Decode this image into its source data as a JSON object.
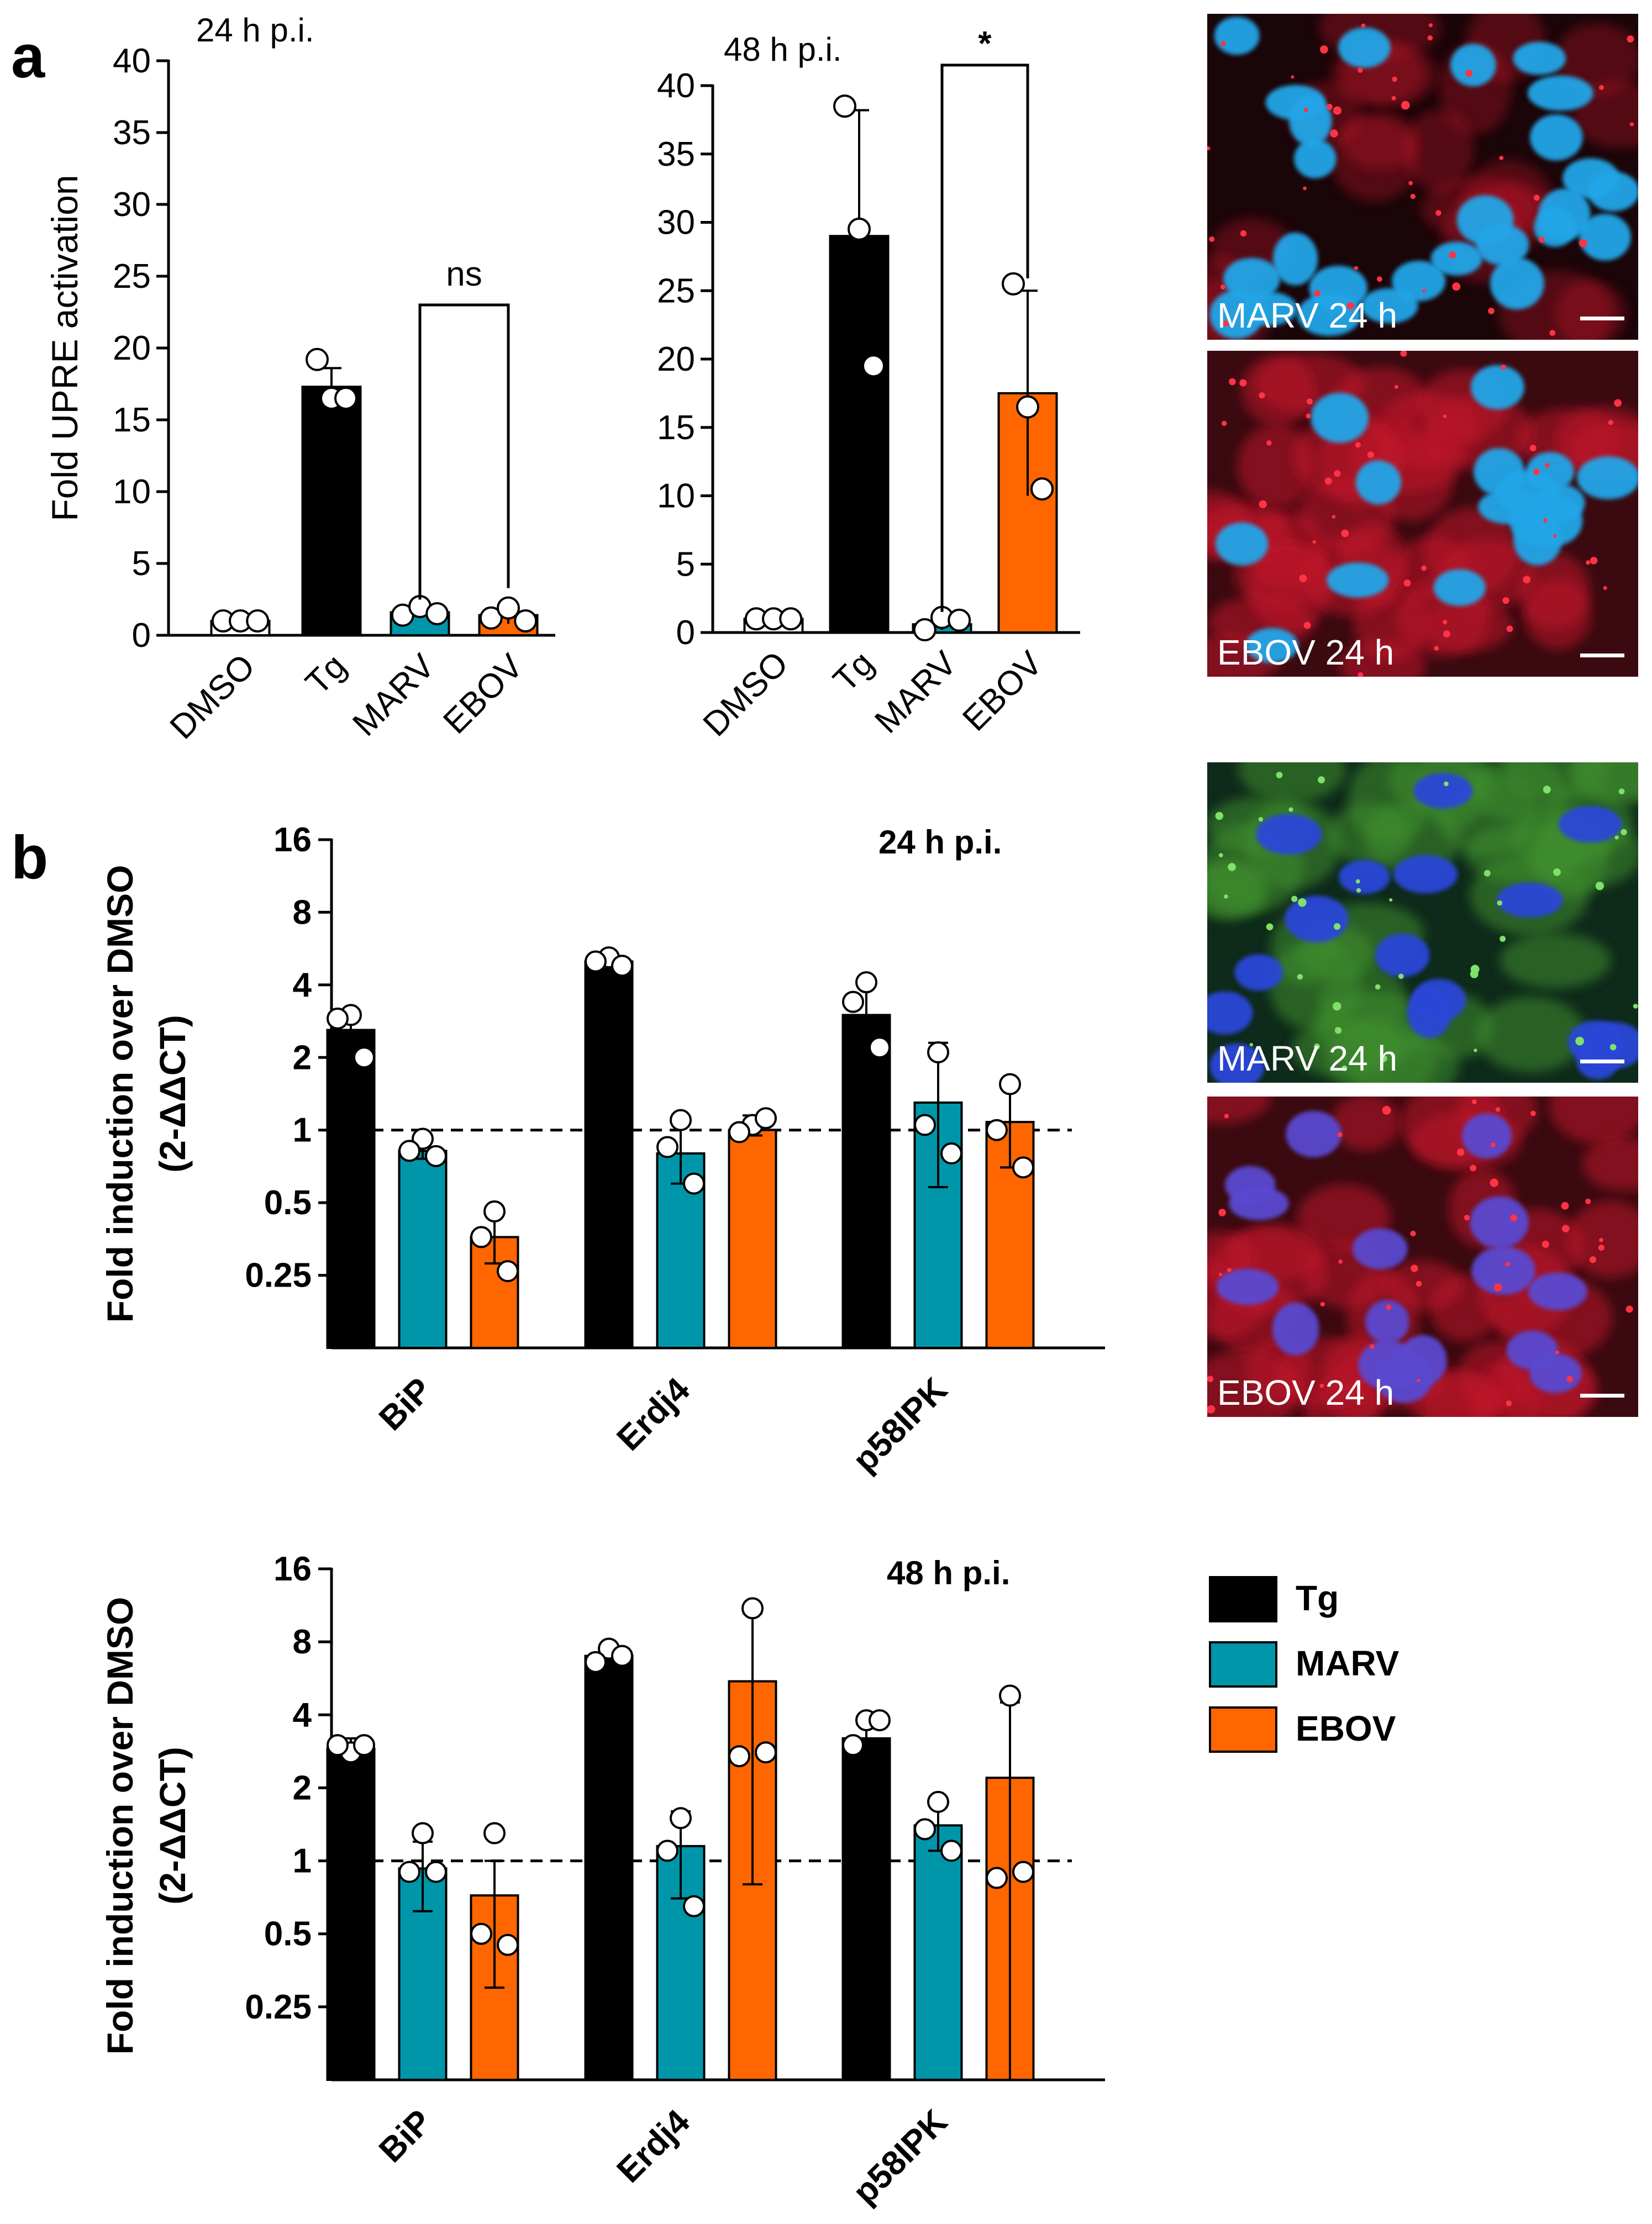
{
  "panel_letters": {
    "a": "a",
    "b": "b"
  },
  "colors": {
    "Tg": "#000000",
    "MARV": "#0096aa",
    "EBOV": "#ff6600"
  },
  "legend": [
    {
      "name": "Tg",
      "color": "#000000"
    },
    {
      "name": "MARV",
      "color": "#0096aa"
    },
    {
      "name": "EBOV",
      "color": "#ff6600"
    }
  ],
  "micrographs": [
    {
      "label": "MARV 24 h",
      "stain": "red-blue",
      "sparse": true
    },
    {
      "label": "EBOV 24 h",
      "stain": "red-blue",
      "sparse": false
    },
    {
      "label": "MARV 24 h",
      "stain": "green-blue",
      "sparse": false
    },
    {
      "label": "EBOV 24 h",
      "stain": "red-blue",
      "sparse": false
    }
  ],
  "chart_data": [
    {
      "id": "a1",
      "type": "bar",
      "title": "24 h p.i.",
      "ylabel": "Fold UPRE activation",
      "xlabel": "",
      "categories": [
        "DMSO",
        "Tg",
        "MARV",
        "EBOV"
      ],
      "ylim": [
        0,
        40
      ],
      "yticks": [
        0,
        5,
        10,
        15,
        20,
        25,
        30,
        35,
        40
      ],
      "bar_colors": [
        "#ffffff",
        "#000000",
        "#0096aa",
        "#ff6600"
      ],
      "values": [
        1.0,
        17.3,
        1.6,
        1.4
      ],
      "sd": [
        0,
        1.3,
        0.4,
        0.6
      ],
      "points": [
        [
          1,
          1,
          1
        ],
        [
          19.2,
          16.5,
          16.5
        ],
        [
          1.4,
          2.0,
          1.5
        ],
        [
          1.2,
          1.9,
          1.0
        ]
      ],
      "significance": [
        {
          "from": 2,
          "to": 3,
          "label": "ns",
          "y": 23
        }
      ]
    },
    {
      "id": "a2",
      "type": "bar",
      "title": "48 h p.i.",
      "ylabel": "",
      "xlabel": "",
      "categories": [
        "DMSO",
        "Tg",
        "MARV",
        "EBOV"
      ],
      "ylim": [
        0,
        40
      ],
      "yticks": [
        0,
        5,
        10,
        15,
        20,
        25,
        30,
        35,
        40
      ],
      "bar_colors": [
        "#ffffff",
        "#000000",
        "#0096aa",
        "#ff6600"
      ],
      "values": [
        1.0,
        29.0,
        0.6,
        17.5
      ],
      "sd": [
        0,
        9.2,
        0.4,
        7.5
      ],
      "points": [
        [
          1,
          1,
          1
        ],
        [
          38.5,
          29.5,
          19.5
        ],
        [
          0.2,
          1.1,
          0.9
        ],
        [
          25.5,
          16.5,
          10.5
        ]
      ],
      "significance": [
        {
          "from": 2,
          "to": 3,
          "label": "*",
          "y": 41.5
        }
      ]
    },
    {
      "id": "b1",
      "type": "bar",
      "title": "24 h p.i.",
      "ylabel": "Fold induction over DMSO",
      "ylabel_sub": "(2-ΔΔCT)",
      "xlabel": "",
      "scale": "log2",
      "categories": [
        "BiP",
        "Erdj4",
        "p58IPK"
      ],
      "ylim": [
        0.125,
        16
      ],
      "yticks": [
        0.25,
        0.5,
        1,
        2,
        4,
        8,
        16
      ],
      "yticklabels": [
        "0.25",
        "0.5",
        "1",
        "2",
        "4",
        "8",
        "16"
      ],
      "reference_line": 1,
      "series": [
        {
          "name": "Tg",
          "values": [
            2.6,
            5.0,
            3.0
          ],
          "sd_up": [
            3.1,
            5.3,
            4.0
          ],
          "sd_down": [
            2.2,
            4.7,
            2.3
          ],
          "points": [
            [
              3.0,
              2.9,
              2.0
            ],
            [
              5.2,
              5.0,
              4.8
            ],
            [
              4.1,
              3.4,
              2.2
            ]
          ]
        },
        {
          "name": "MARV",
          "values": [
            0.82,
            0.8,
            1.3
          ],
          "sd_up": [
            0.92,
            1.1,
            2.3
          ],
          "sd_down": [
            0.76,
            0.6,
            0.58
          ],
          "points": [
            [
              0.92,
              0.82,
              0.78
            ],
            [
              1.1,
              0.85,
              0.6
            ],
            [
              2.1,
              1.05,
              0.8
            ]
          ]
        },
        {
          "name": "EBOV",
          "values": [
            0.36,
            1.0,
            1.08
          ],
          "sd_up": [
            0.46,
            1.15,
            1.5
          ],
          "sd_down": [
            0.28,
            0.95,
            0.7
          ],
          "points": [
            [
              0.46,
              0.36,
              0.26
            ],
            [
              1.05,
              0.98,
              1.12
            ],
            [
              1.55,
              1.0,
              0.7
            ]
          ]
        }
      ]
    },
    {
      "id": "b2",
      "type": "bar",
      "title": "48 h p.i.",
      "ylabel": "Fold induction over DMSO",
      "ylabel_sub": "(2-ΔΔCT)",
      "xlabel": "",
      "scale": "log2",
      "categories": [
        "BiP",
        "Erdj4",
        "p58IPK"
      ],
      "ylim": [
        0.125,
        16
      ],
      "yticks": [
        0.25,
        0.5,
        1,
        2,
        4,
        8,
        16
      ],
      "yticklabels": [
        "0.25",
        "0.5",
        "1",
        "2",
        "4",
        "8",
        "16"
      ],
      "reference_line": 1,
      "series": [
        {
          "name": "Tg",
          "values": [
            2.9,
            7.0,
            3.2
          ],
          "sd_up": [
            3.2,
            7.6,
            3.8
          ],
          "sd_down": [
            2.7,
            6.6,
            2.7
          ],
          "points": [
            [
              2.8,
              3.0,
              3.0
            ],
            [
              7.5,
              6.6,
              7.0
            ],
            [
              3.8,
              3.0,
              3.8
            ]
          ]
        },
        {
          "name": "MARV",
          "values": [
            0.93,
            1.15,
            1.4
          ],
          "sd_up": [
            1.2,
            1.6,
            1.7
          ],
          "sd_down": [
            0.62,
            0.7,
            1.1
          ],
          "points": [
            [
              1.3,
              0.9,
              0.9
            ],
            [
              1.5,
              1.1,
              0.65
            ],
            [
              1.75,
              1.35,
              1.1
            ]
          ]
        },
        {
          "name": "EBOV",
          "values": [
            0.72,
            5.5,
            2.2
          ],
          "sd_up": [
            1.0,
            10.5,
            4.5
          ],
          "sd_down": [
            0.3,
            0.8,
            0.12
          ],
          "points": [
            [
              1.3,
              0.5,
              0.45
            ],
            [
              11.0,
              2.7,
              2.8
            ],
            [
              4.8,
              0.85,
              0.9
            ]
          ]
        }
      ]
    }
  ]
}
